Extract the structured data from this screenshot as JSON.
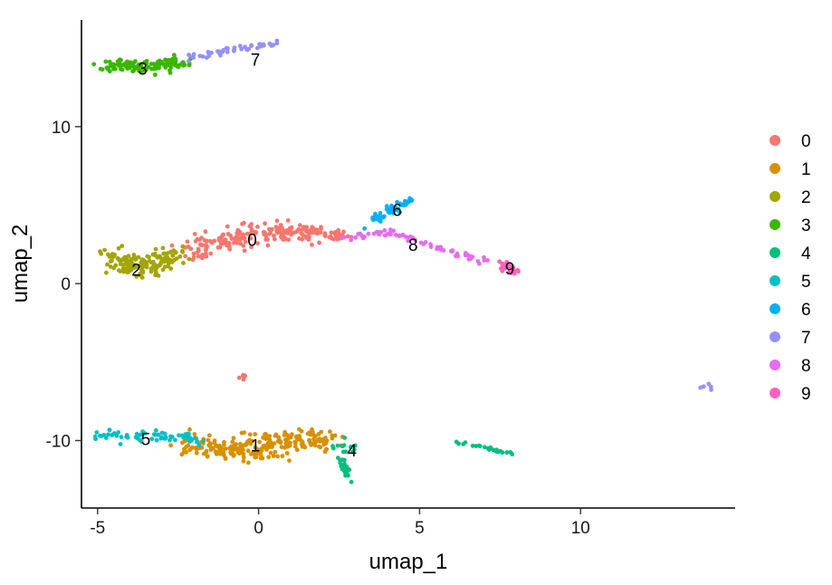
{
  "chart_data": {
    "type": "scatter",
    "title": "",
    "xlabel": "umap_1",
    "ylabel": "umap_2",
    "xlim": [
      -5.5,
      14.8
    ],
    "ylim": [
      -14.3,
      16.8
    ],
    "xticks": [
      -5,
      0,
      5,
      10
    ],
    "yticks": [
      -10,
      0,
      10
    ],
    "grid": false,
    "legend_position": "right",
    "series": [
      {
        "name": "0",
        "color": "#F8766D",
        "label_pos": [
          -0.2,
          2.8
        ],
        "segments": [
          [
            -2.2,
            2.0,
            -1.0,
            2.8,
            0.8,
            0.8
          ],
          [
            -1.0,
            2.8,
            0.5,
            3.4,
            1.0,
            0.9
          ],
          [
            0.5,
            3.4,
            2.2,
            3.0,
            0.7,
            0.6
          ],
          [
            2.2,
            3.0,
            2.6,
            3.1,
            0.3,
            0.3
          ]
        ],
        "blobs": [
          [
            -0.5,
            -5.9,
            0.1,
            0.1,
            6
          ]
        ],
        "count": 210
      },
      {
        "name": "1",
        "color": "#D89000",
        "label_pos": [
          -0.1,
          -10.3
        ],
        "segments": [
          [
            -2.5,
            -10.3,
            -0.5,
            -10.6,
            0.7,
            0.8
          ],
          [
            -0.5,
            -10.6,
            1.0,
            -10.0,
            0.8,
            1.1
          ],
          [
            1.0,
            -10.0,
            2.3,
            -10.0,
            0.5,
            0.8
          ]
        ],
        "count": 240
      },
      {
        "name": "2",
        "color": "#A3A500",
        "label_pos": [
          -3.8,
          0.9
        ],
        "segments": [
          [
            -4.6,
            1.5,
            -3.5,
            1.0,
            0.5,
            0.8
          ],
          [
            -3.5,
            1.0,
            -2.5,
            2.0,
            0.5,
            0.7
          ]
        ],
        "count": 150
      },
      {
        "name": "3",
        "color": "#39B600",
        "label_pos": [
          -3.6,
          13.7
        ],
        "segments": [
          [
            -4.7,
            14.0,
            -3.5,
            13.8,
            0.4,
            0.5
          ],
          [
            -3.5,
            13.8,
            -2.3,
            14.1,
            0.4,
            0.5
          ]
        ],
        "count": 120
      },
      {
        "name": "4",
        "color": "#00BF7D",
        "label_pos": [
          2.9,
          -10.6
        ],
        "segments": [
          [
            2.6,
            -10.3,
            3.3,
            -10.4,
            0.4,
            0.5
          ],
          [
            2.5,
            -11.0,
            2.9,
            -12.6,
            0.1,
            0.2
          ],
          [
            6.2,
            -10.1,
            8.0,
            -10.9,
            0.1,
            0.1
          ]
        ],
        "count": 60
      },
      {
        "name": "5",
        "color": "#00BFC4",
        "label_pos": [
          -3.5,
          -9.9
        ],
        "segments": [
          [
            -5.0,
            -9.6,
            -3.6,
            -9.8,
            0.3,
            0.4
          ],
          [
            -3.6,
            -9.8,
            -2.4,
            -9.7,
            0.4,
            0.5
          ],
          [
            -2.4,
            -9.7,
            -1.8,
            -10.1,
            0.2,
            0.3
          ]
        ],
        "count": 70
      },
      {
        "name": "6",
        "color": "#00B0F6",
        "label_pos": [
          4.3,
          4.7
        ],
        "segments": [
          [
            3.4,
            3.9,
            4.2,
            4.8,
            0.2,
            0.4
          ],
          [
            4.2,
            4.8,
            4.7,
            5.3,
            0.2,
            0.3
          ]
        ],
        "count": 50
      },
      {
        "name": "7",
        "color": "#9590FF",
        "label_pos": [
          -0.1,
          14.3
        ],
        "segments": [
          [
            -2.2,
            14.4,
            0.6,
            15.4,
            0.1,
            0.2
          ]
        ],
        "blobs": [
          [
            13.9,
            -6.6,
            0.1,
            0.1,
            5
          ]
        ],
        "count": 45
      },
      {
        "name": "8",
        "color": "#E76BF3",
        "label_pos": [
          4.8,
          2.5
        ],
        "segments": [
          [
            2.6,
            2.9,
            4.0,
            3.3,
            0.2,
            0.2
          ],
          [
            4.0,
            3.3,
            6.2,
            1.9,
            0.2,
            0.2
          ],
          [
            6.2,
            1.9,
            7.2,
            1.4,
            0.2,
            0.2
          ]
        ],
        "count": 70
      },
      {
        "name": "9",
        "color": "#FF62BC",
        "label_pos": [
          7.8,
          1.0
        ],
        "segments": [
          [
            7.5,
            1.2,
            8.0,
            0.8,
            0.2,
            0.3
          ]
        ],
        "count": 30
      }
    ]
  }
}
